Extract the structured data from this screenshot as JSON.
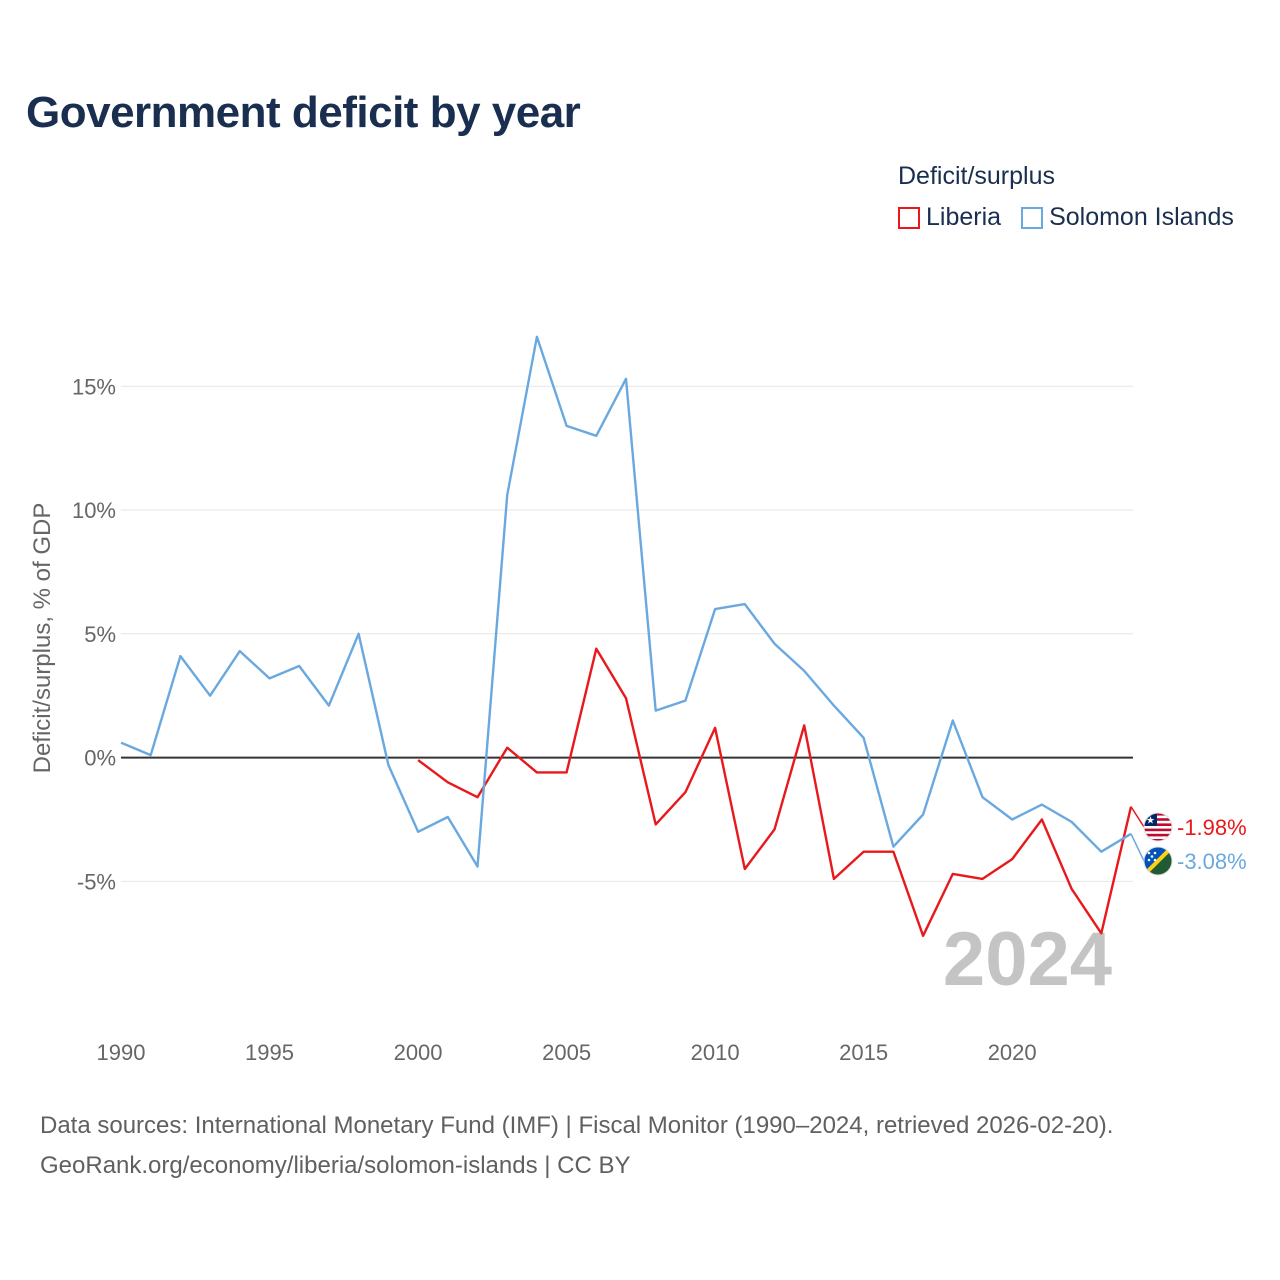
{
  "title": "Government deficit by year",
  "legend": {
    "title": "Deficit/surplus",
    "items": [
      {
        "label": "Liberia",
        "color": "#e8191c"
      },
      {
        "label": "Solomon Islands",
        "color": "#6aa8e0"
      }
    ]
  },
  "footer": {
    "line1": "Data sources: International Monetary Fund (IMF) | Fiscal Monitor (1990–2024, retrieved 2026-02-20).",
    "line2": "GeoRank.org/economy/liberia/solomon-islands | CC BY"
  },
  "chart_data": {
    "type": "line",
    "title": "Government deficit by year",
    "xlabel": "",
    "ylabel": "Deficit/surplus, % of GDP",
    "xlim": [
      1990,
      2024
    ],
    "ylim": [
      -8.5,
      18
    ],
    "yticks": [
      -5,
      0,
      5,
      10,
      15
    ],
    "ytick_labels": [
      "-5%",
      "0%",
      "5%",
      "10%",
      "15%"
    ],
    "xticks": [
      1990,
      1995,
      2000,
      2005,
      2010,
      2015,
      2020
    ],
    "xtick_labels": [
      "1990",
      "1995",
      "2000",
      "2005",
      "2010",
      "2015",
      "2020"
    ],
    "year_label": "2024",
    "grid": true,
    "series": [
      {
        "name": "Liberia",
        "color": "#e8191c",
        "end_label": "-1.98%",
        "flag": "liberia-flag-icon",
        "x": [
          2000,
          2001,
          2002,
          2003,
          2004,
          2005,
          2006,
          2007,
          2008,
          2009,
          2010,
          2011,
          2012,
          2013,
          2014,
          2015,
          2016,
          2017,
          2018,
          2019,
          2020,
          2021,
          2022,
          2023,
          2024
        ],
        "values": [
          -0.1,
          -1.0,
          -1.6,
          0.4,
          -0.6,
          -0.6,
          4.4,
          2.4,
          -2.7,
          -1.4,
          1.2,
          -4.5,
          -2.9,
          1.3,
          -4.9,
          -3.8,
          -3.8,
          -7.2,
          -4.7,
          -4.9,
          -4.1,
          -2.5,
          -5.3,
          -7.1,
          -1.98
        ]
      },
      {
        "name": "Solomon Islands",
        "color": "#6aa8e0",
        "end_label": "-3.08%",
        "flag": "solomon-islands-flag-icon",
        "x": [
          1990,
          1991,
          1992,
          1993,
          1994,
          1995,
          1996,
          1997,
          1998,
          1999,
          2000,
          2001,
          2002,
          2003,
          2004,
          2005,
          2006,
          2007,
          2008,
          2009,
          2010,
          2011,
          2012,
          2013,
          2014,
          2015,
          2016,
          2017,
          2018,
          2019,
          2020,
          2021,
          2022,
          2023,
          2024
        ],
        "values": [
          0.6,
          0.1,
          4.1,
          2.5,
          4.3,
          3.2,
          3.7,
          2.1,
          5.0,
          -0.3,
          -3.0,
          -2.4,
          -4.4,
          10.6,
          17.0,
          13.4,
          13.0,
          15.3,
          1.9,
          2.3,
          6.0,
          6.2,
          4.6,
          3.5,
          2.1,
          0.8,
          -3.6,
          -2.3,
          1.5,
          -1.6,
          -2.5,
          -1.9,
          -2.6,
          -3.8,
          -3.08
        ]
      }
    ]
  }
}
